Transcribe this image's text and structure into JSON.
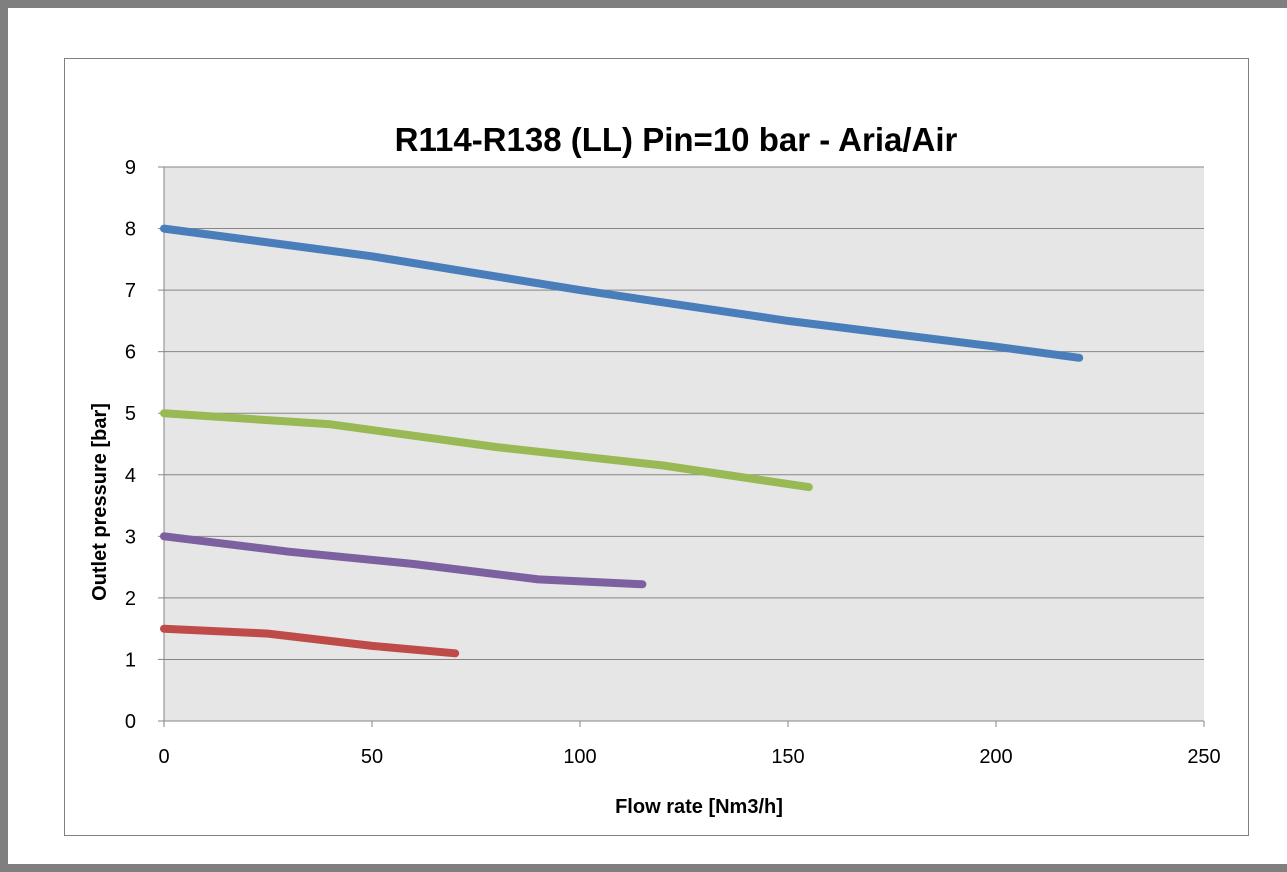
{
  "chart_data": {
    "type": "line",
    "title": "R114-R138 (LL) Pin=10 bar - Aria/Air",
    "xlabel": "Flow  rate [Nm3/h]",
    "ylabel": "Outlet pressure [bar]",
    "xlim": [
      0,
      250
    ],
    "ylim": [
      0,
      9
    ],
    "xticks": [
      0,
      50,
      100,
      150,
      200,
      250
    ],
    "yticks": [
      0,
      1,
      2,
      3,
      4,
      5,
      6,
      7,
      8,
      9
    ],
    "grid": "horizontal",
    "plot_background": "#e6e6e6",
    "series": [
      {
        "color": "#4a7ebb",
        "points": [
          [
            0,
            8.0
          ],
          [
            50,
            7.55
          ],
          [
            100,
            7.0
          ],
          [
            150,
            6.5
          ],
          [
            200,
            6.08
          ],
          [
            220,
            5.9
          ]
        ]
      },
      {
        "color": "#98b954",
        "points": [
          [
            0,
            5.0
          ],
          [
            40,
            4.82
          ],
          [
            80,
            4.45
          ],
          [
            120,
            4.15
          ],
          [
            155,
            3.8
          ]
        ]
      },
      {
        "color": "#7d60a0",
        "points": [
          [
            0,
            3.0
          ],
          [
            30,
            2.75
          ],
          [
            60,
            2.55
          ],
          [
            90,
            2.3
          ],
          [
            115,
            2.22
          ]
        ]
      },
      {
        "color": "#be4b48",
        "points": [
          [
            0,
            1.5
          ],
          [
            25,
            1.42
          ],
          [
            50,
            1.22
          ],
          [
            70,
            1.1
          ]
        ]
      }
    ]
  }
}
